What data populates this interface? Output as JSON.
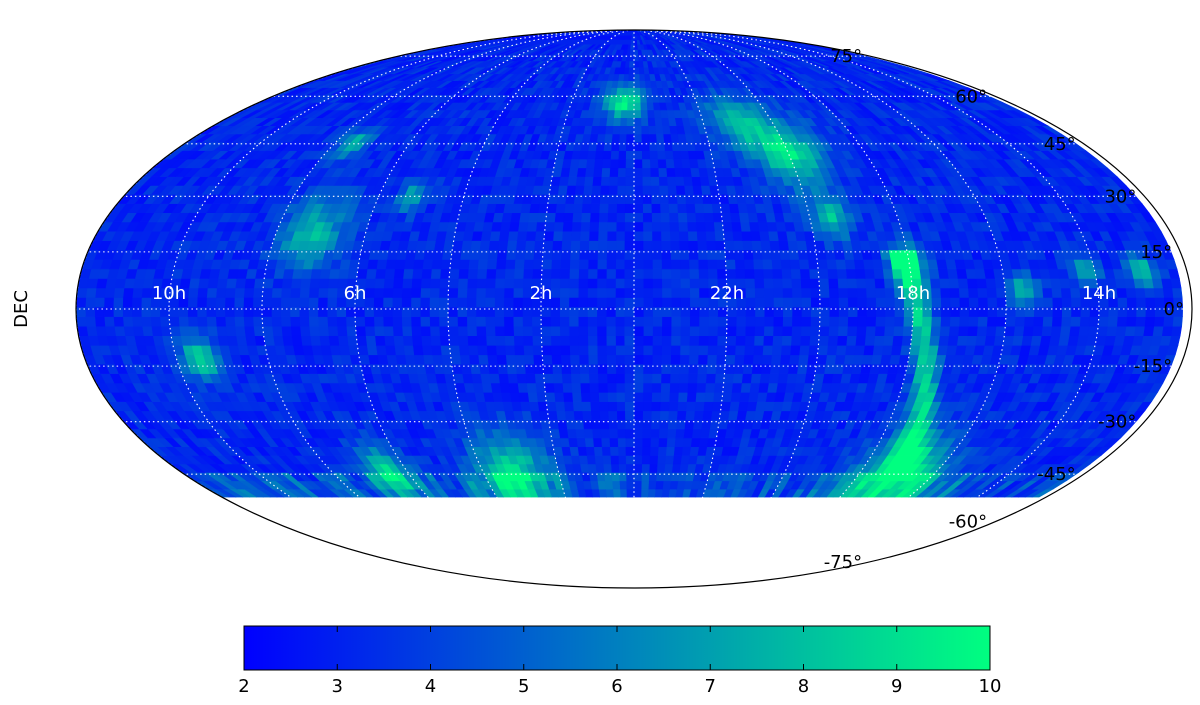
{
  "chart_data": {
    "type": "heatmap",
    "projection": "mollweide",
    "title": "",
    "xlabel": "",
    "ylabel": "DEC",
    "ra_labels": [
      "10h",
      "6h",
      "2h",
      "22h",
      "18h",
      "14h"
    ],
    "ra_label_hours": [
      10,
      6,
      2,
      22,
      18,
      14
    ],
    "ra_gridline_hours": [
      12,
      10,
      8,
      6,
      4,
      2,
      0,
      22,
      20,
      18,
      16,
      14
    ],
    "dec_labels": [
      "75°",
      "60°",
      "45°",
      "30°",
      "15°",
      "0°",
      "-15°",
      "-30°",
      "-45°",
      "-60°",
      "-75°"
    ],
    "dec_label_values": [
      75,
      60,
      45,
      30,
      15,
      0,
      -15,
      -30,
      -45,
      -60,
      -75
    ],
    "dec_coverage": [
      -52,
      90
    ],
    "grid": true,
    "colorbar": {
      "orientation": "horizontal",
      "placement": "bottom",
      "range": [
        2,
        10
      ],
      "tick_labels": [
        "2",
        "3",
        "4",
        "5",
        "6",
        "7",
        "8",
        "9",
        "10"
      ],
      "tick_values": [
        2,
        3,
        4,
        5,
        6,
        7,
        8,
        9,
        10
      ],
      "colors": [
        "#0000ff",
        "#00ff80"
      ]
    },
    "background_level": 3.2,
    "hotspots": [
      {
        "ra_h": 0.3,
        "dec": 58,
        "value": 9.5,
        "size": 4
      },
      {
        "ra_h": 20.0,
        "dec": 42,
        "value": 9.0,
        "size": 7
      },
      {
        "ra_h": 19.5,
        "dec": 24,
        "value": 8.0,
        "size": 4
      },
      {
        "ra_h": 7.2,
        "dec": 20,
        "value": 8.0,
        "size": 7
      },
      {
        "ra_h": 9.5,
        "dec": -13,
        "value": 9.0,
        "size": 4
      },
      {
        "ra_h": 17.0,
        "dec": -46,
        "value": 9.5,
        "size": 9
      },
      {
        "ra_h": 6.5,
        "dec": -44,
        "value": 8.5,
        "size": 5
      },
      {
        "ra_h": 18.0,
        "dec": 12,
        "value": 8.5,
        "size": 4
      },
      {
        "ra_h": 7.5,
        "dec": 45,
        "value": 8.0,
        "size": 3
      },
      {
        "ra_h": 5.2,
        "dec": 30,
        "value": 7.5,
        "size": 3
      },
      {
        "ra_h": 14.2,
        "dec": 10,
        "value": 8.0,
        "size": 3
      },
      {
        "ra_h": 15.6,
        "dec": 5,
        "value": 8.0,
        "size": 3
      },
      {
        "ra_h": 3.2,
        "dec": -44,
        "value": 8.5,
        "size": 8
      },
      {
        "ra_h": 13.0,
        "dec": 10,
        "value": 8.5,
        "size": 3
      },
      {
        "ra_h": 21.0,
        "dec": 52,
        "value": 7.0,
        "size": 6
      }
    ],
    "galactic_plane_ra_h": [
      18.2,
      17.9,
      17.6,
      17.3,
      17.0
    ],
    "galactic_plane_dec": [
      15,
      0,
      -15,
      -30,
      -46
    ],
    "galactic_plane_value": 8.5
  }
}
